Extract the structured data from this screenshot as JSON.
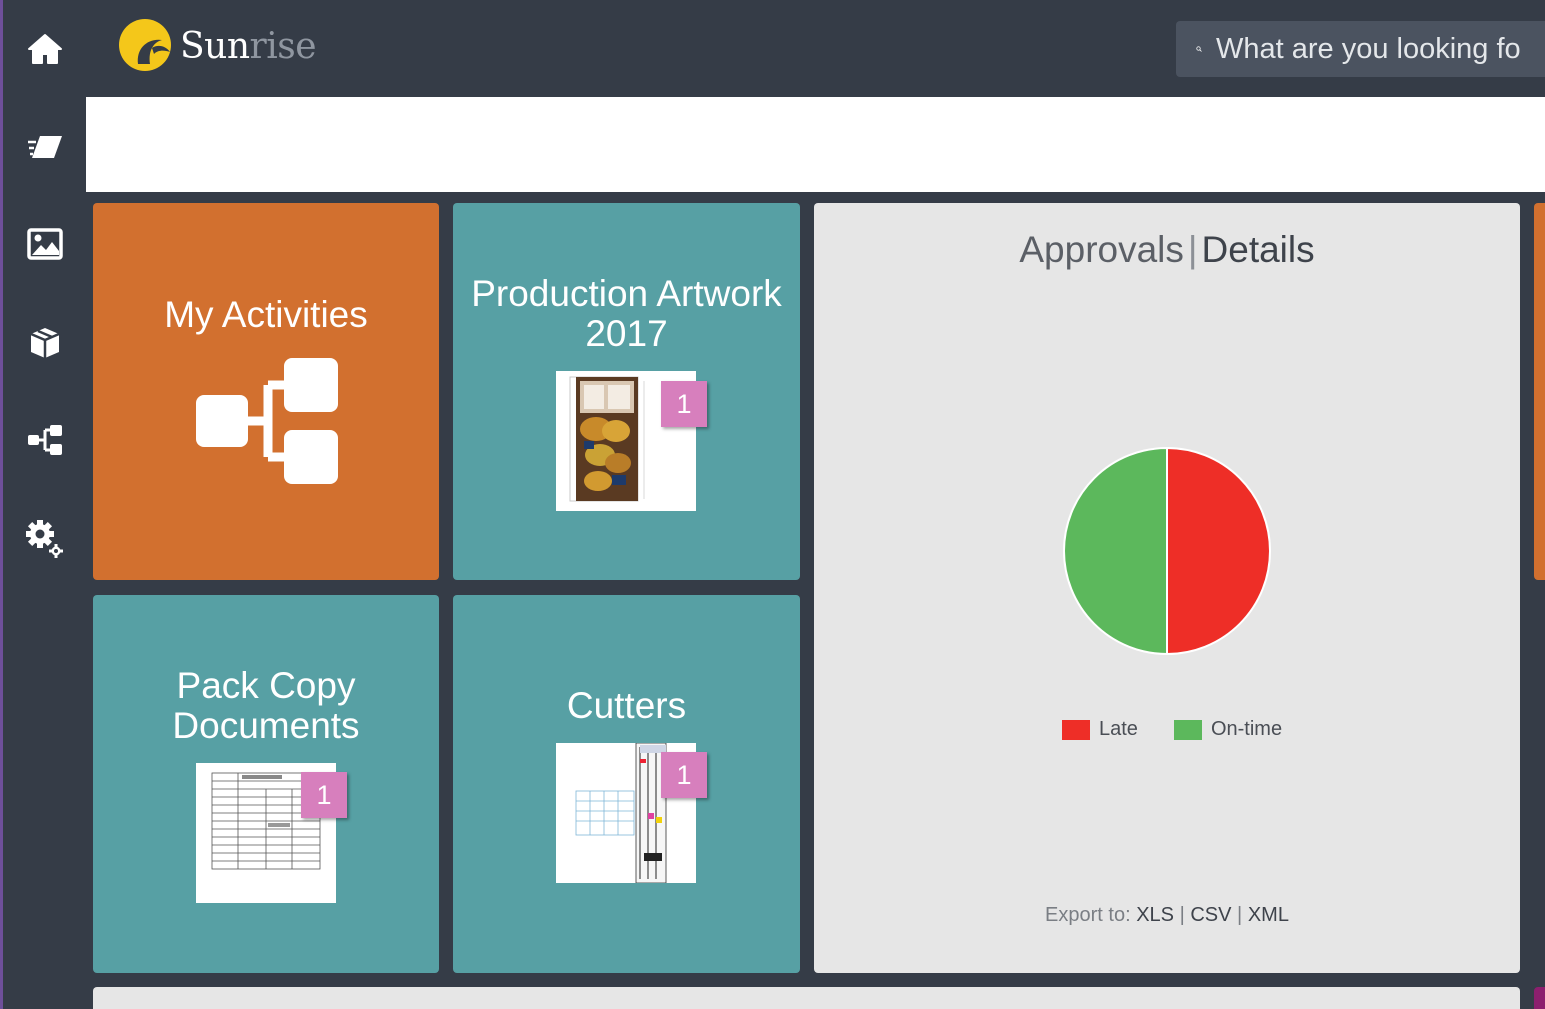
{
  "app": {
    "logo_part1": "Sun",
    "logo_part2": "rise"
  },
  "search": {
    "placeholder": "What are you looking fo"
  },
  "sidebar": {
    "items": [
      {
        "icon": "home-icon"
      },
      {
        "icon": "eraser-icon"
      },
      {
        "icon": "image-icon"
      },
      {
        "icon": "box-icon"
      },
      {
        "icon": "workflow-icon"
      },
      {
        "icon": "settings-gear-icon"
      }
    ]
  },
  "tiles": {
    "my_activities": {
      "title": "My Activities"
    },
    "production_artwork": {
      "title_line1": "Production Artwork",
      "title_line2": "2017",
      "badge": "1"
    },
    "pack_copy": {
      "title_line1": "Pack Copy",
      "title_line2": "Documents",
      "badge": "1"
    },
    "cutters": {
      "title": "Cutters",
      "badge": "1"
    }
  },
  "approvals": {
    "title": "Approvals",
    "separator": "|",
    "details_link": "Details",
    "export_label": "Export to:",
    "export_xls": "XLS",
    "export_csv": "CSV",
    "export_xml": "XML",
    "sep": "|"
  },
  "chart_data": {
    "type": "pie",
    "title": "",
    "categories": [
      "Late",
      "On-time"
    ],
    "values": [
      50,
      50
    ],
    "colors": [
      "#ee2e27",
      "#5cb85c"
    ],
    "legend_position": "bottom"
  }
}
